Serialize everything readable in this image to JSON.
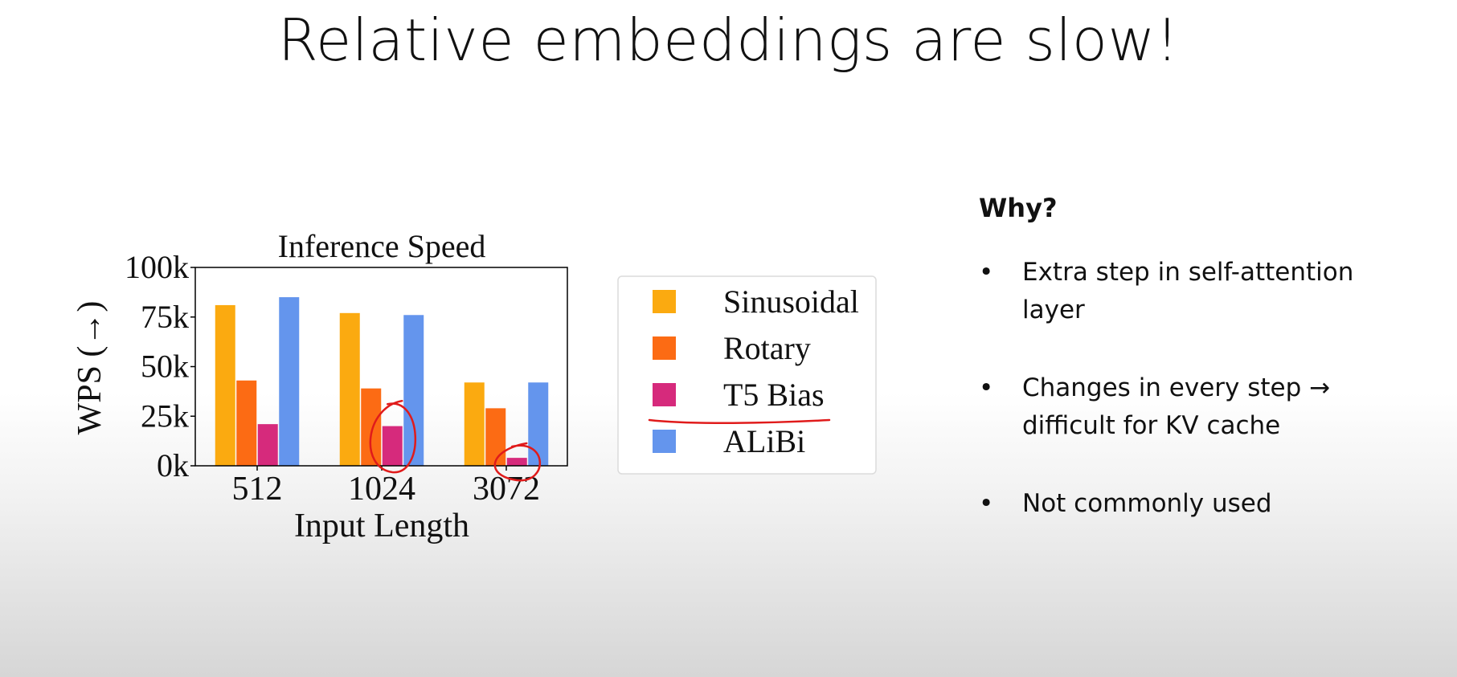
{
  "slide": {
    "title": "Relative embeddings are slow!"
  },
  "why": {
    "heading": "Why?",
    "bullets": [
      "Extra step in self-attention layer",
      "Changes in every step → difficult for KV cache",
      "Not commonly used"
    ]
  },
  "chart_data": {
    "type": "bar",
    "title": "Inference Speed",
    "xlabel": "Input Length",
    "ylabel": "WPS (→)",
    "categories": [
      "512",
      "1024",
      "3072"
    ],
    "ylim": [
      0,
      100000
    ],
    "yticks": [
      {
        "value": 0,
        "label": "0k"
      },
      {
        "value": 25000,
        "label": "25k"
      },
      {
        "value": 50000,
        "label": "50k"
      },
      {
        "value": 75000,
        "label": "75k"
      },
      {
        "value": 100000,
        "label": "100k"
      }
    ],
    "grid": false,
    "legend_position": "right of plot",
    "series": [
      {
        "name": "Sinusoidal",
        "color": "#fbaa10",
        "values": [
          81000,
          77000,
          42000
        ]
      },
      {
        "name": "Rotary",
        "color": "#fc6b14",
        "values": [
          43000,
          39000,
          29000
        ]
      },
      {
        "name": "T5 Bias",
        "color": "#d62a7c",
        "values": [
          21000,
          20000,
          4000
        ]
      },
      {
        "name": "ALiBi",
        "color": "#6495ed",
        "values": [
          85000,
          76000,
          42000
        ]
      }
    ],
    "annotations": {
      "color": "#e01b1b",
      "circled": [
        {
          "series": "T5 Bias",
          "category": "1024"
        },
        {
          "series": "T5 Bias",
          "category": "3072"
        }
      ],
      "underlined_legend_entry": "T5 Bias"
    }
  }
}
